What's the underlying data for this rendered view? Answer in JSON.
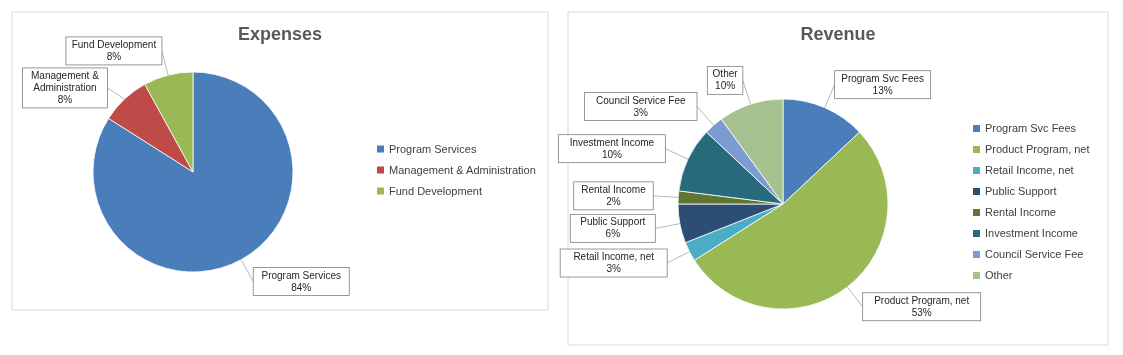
{
  "chart_data": [
    {
      "type": "pie",
      "title": "Expenses",
      "categories": [
        "Program Services",
        "Management & Administration",
        "Fund Development"
      ],
      "values": [
        84,
        8,
        8
      ],
      "colors": [
        "#4a7ebb",
        "#be4b48",
        "#98b954"
      ],
      "value_labels": [
        "84%",
        "8%",
        "8%"
      ],
      "legend": "right"
    },
    {
      "type": "pie",
      "title": "Revenue",
      "categories": [
        "Program Svc Fees",
        "Product Program, net",
        "Retail Income, net",
        "Public Support",
        "Rental Income",
        "Investment  Income",
        "Council Service Fee",
        "Other"
      ],
      "values": [
        13,
        53,
        3,
        6,
        2,
        10,
        3,
        10
      ],
      "colors": [
        "#4a7ebb",
        "#98b954",
        "#4bacc6",
        "#2c4d75",
        "#5f7530",
        "#276a7c",
        "#7c9bd1",
        "#a5c18f"
      ],
      "value_labels": [
        "13%",
        "53%",
        "3%",
        "6%",
        "2%",
        "10%",
        "3%",
        "10%"
      ],
      "legend": "right"
    }
  ]
}
